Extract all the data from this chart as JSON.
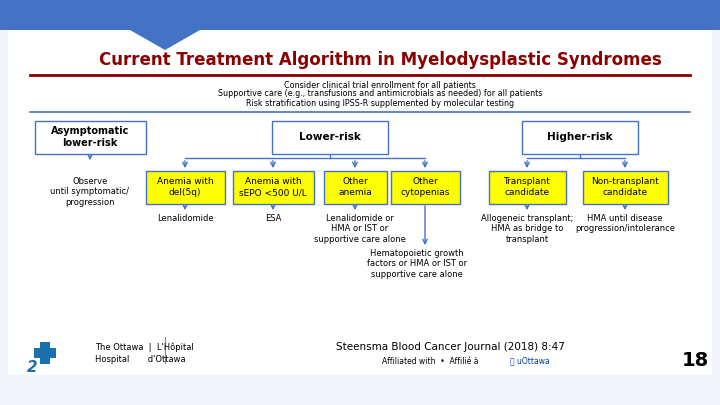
{
  "title": "Current Treatment Algorithm in Myelodysplastic Syndromes",
  "title_color": "#8B0000",
  "subtitle_lines": [
    "Consider clinical trial enrollment for all patients",
    "Supportive care (e.g., transfusions and antimicrobials as needed) for all patients",
    "Risk stratification using IPSS-R supplemented by molecular testing"
  ],
  "slide_bg": "#f0f4f8",
  "header_bg": "#4472c4",
  "arrow_color": "#4472c4",
  "box_border": "#4472c4",
  "yellow": "#ffff00",
  "white": "#ffffff",
  "dark_red": "#8B0000",
  "footer_citation": "Steensma Blood Cancer Journal (2018) 8:47",
  "footer_affil": "Affiliated with  •  Affilié à",
  "footer_number": "18",
  "uottawa_color": "#003da5",
  "blue_cross": "#1a6faf"
}
